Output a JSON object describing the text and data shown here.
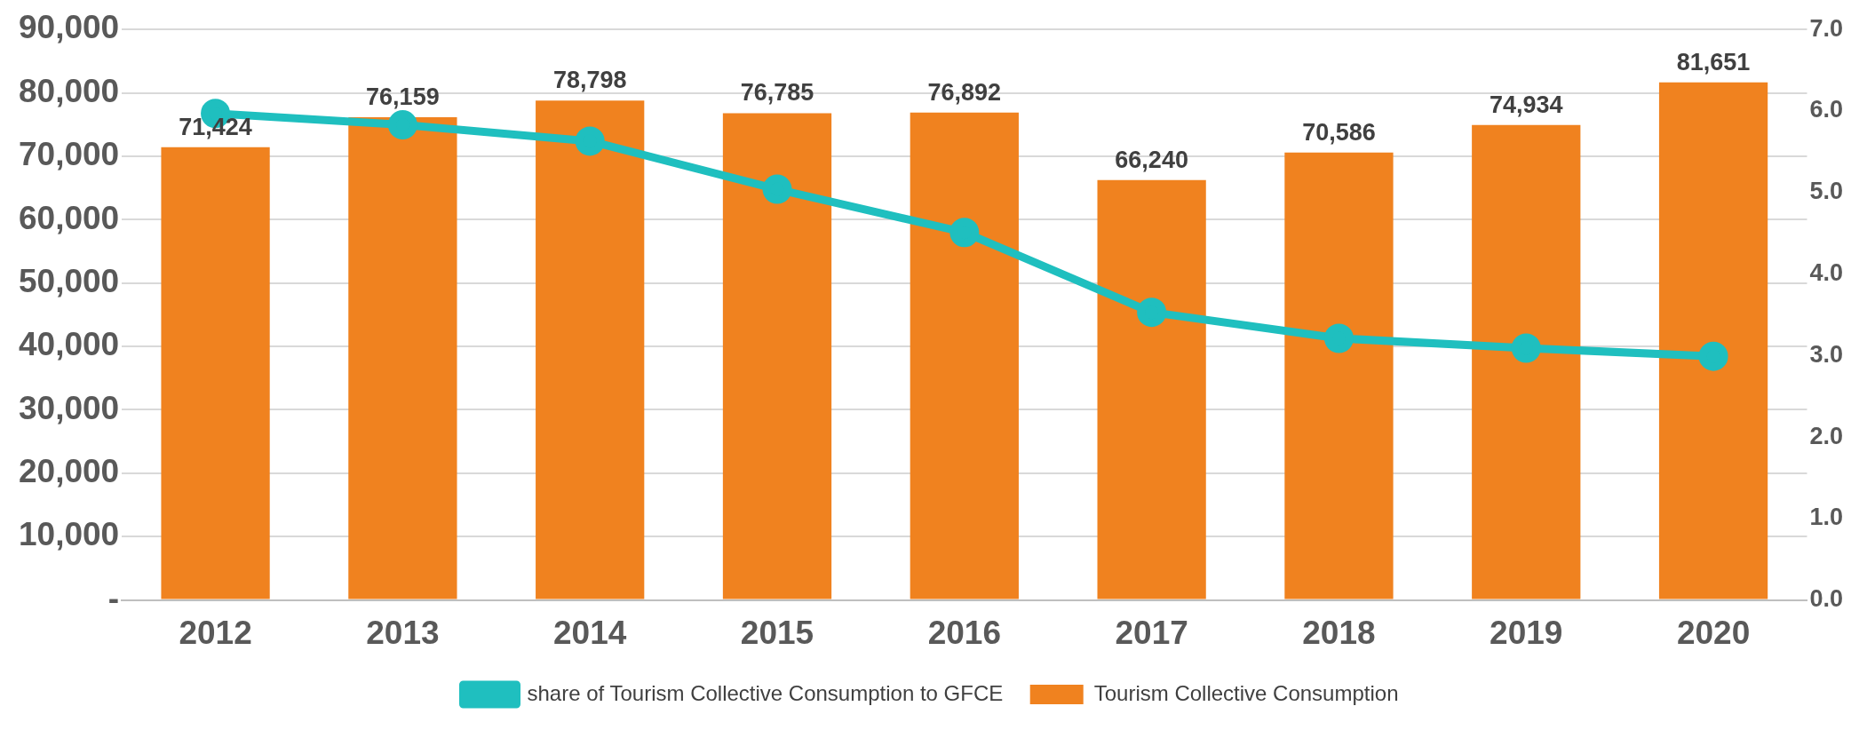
{
  "chart_data": {
    "type": "bar",
    "categories": [
      "2012",
      "2013",
      "2014",
      "2015",
      "2016",
      "2017",
      "2018",
      "2019",
      "2020"
    ],
    "series": [
      {
        "name": "Tourism Collective Consumption",
        "color": "#f0821f",
        "values": [
          71424,
          76159,
          78798,
          76785,
          76892,
          66240,
          70586,
          74934,
          81651
        ],
        "value_labels": [
          "71,424",
          "76,159",
          "78,798",
          "76,785",
          "76,892",
          "66,240",
          "70,586",
          "74,934",
          "81,651"
        ]
      },
      {
        "name": "share of Tourism Collective Consumption to GFCE",
        "type": "line",
        "axis": "y2",
        "color": "#1fbfbf",
        "marker": "circle",
        "values": [
          5.97,
          5.83,
          5.63,
          5.04,
          4.51,
          3.53,
          3.21,
          3.09,
          2.99
        ]
      }
    ],
    "ylim": [
      0,
      90000
    ],
    "yticks": [
      {
        "value": 0,
        "label": "-"
      },
      {
        "value": 10000,
        "label": "10,000"
      },
      {
        "value": 20000,
        "label": "20,000"
      },
      {
        "value": 30000,
        "label": "30,000"
      },
      {
        "value": 40000,
        "label": "40,000"
      },
      {
        "value": 50000,
        "label": "50,000"
      },
      {
        "value": 60000,
        "label": "60,000"
      },
      {
        "value": 70000,
        "label": "70,000"
      },
      {
        "value": 80000,
        "label": "80,000"
      },
      {
        "value": 90000,
        "label": "90,000"
      }
    ],
    "y2lim": [
      0,
      7
    ],
    "y2ticks": [
      {
        "value": 0,
        "label": "0.0"
      },
      {
        "value": 1,
        "label": "1.0"
      },
      {
        "value": 2,
        "label": "2.0"
      },
      {
        "value": 3,
        "label": "3.0"
      },
      {
        "value": 4,
        "label": "4.0"
      },
      {
        "value": 5,
        "label": "5.0"
      },
      {
        "value": 6,
        "label": "6.0"
      },
      {
        "value": 7,
        "label": "7.0"
      }
    ],
    "grid": "y",
    "legend": "bottom"
  }
}
